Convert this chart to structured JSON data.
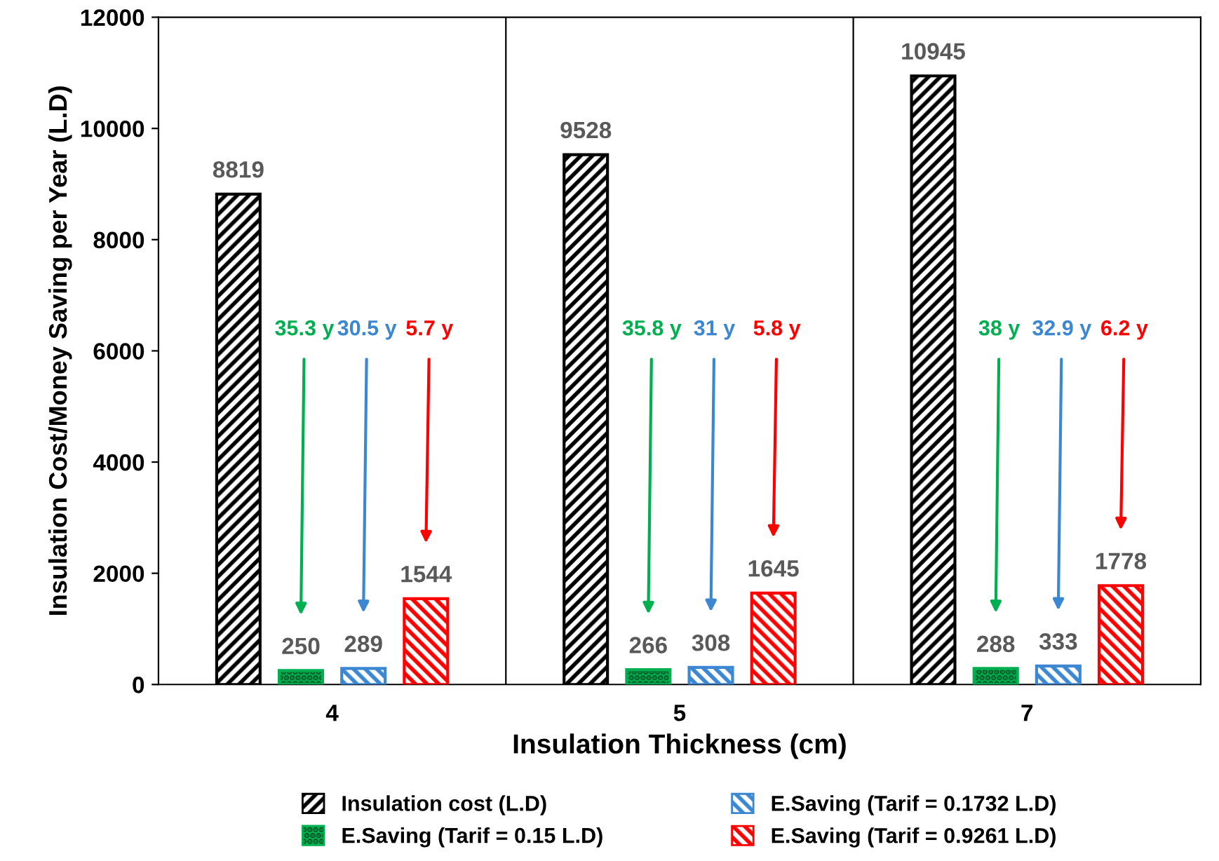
{
  "chart_data": {
    "type": "bar",
    "xlabel": "Insulation Thickness (cm)",
    "ylabel": "Insulation Cost/Money Saving per Year (L.D)",
    "categories": [
      "4",
      "5",
      "7"
    ],
    "series": [
      {
        "name": "Insulation cost (L.D)",
        "color": "#000000",
        "values": [
          8819,
          9528,
          10945
        ]
      },
      {
        "name": "E.Saving (Tarif = 0.15 L.D)",
        "color": "#00b050",
        "values": [
          250,
          266,
          288
        ]
      },
      {
        "name": "E.Saving (Tarif = 0.1732 L.D)",
        "color": "#3c87d2",
        "values": [
          289,
          308,
          333
        ]
      },
      {
        "name": "E.Saving (Tarif = 0.9261 L.D)",
        "color": "#ff0000",
        "values": [
          1544,
          1645,
          1778
        ]
      }
    ],
    "ylim": [
      0,
      12000
    ],
    "yticks": [
      0,
      2000,
      4000,
      6000,
      8000,
      10000,
      12000
    ],
    "grid": "x",
    "legend": "bottom",
    "data_labels": true,
    "annotations": [
      "35.3 y",
      "30.5 y",
      "5.7 y",
      "35.8 y",
      "31 y",
      "5.8 y",
      "38 y",
      "32.9 y",
      "6.2 y"
    ]
  }
}
